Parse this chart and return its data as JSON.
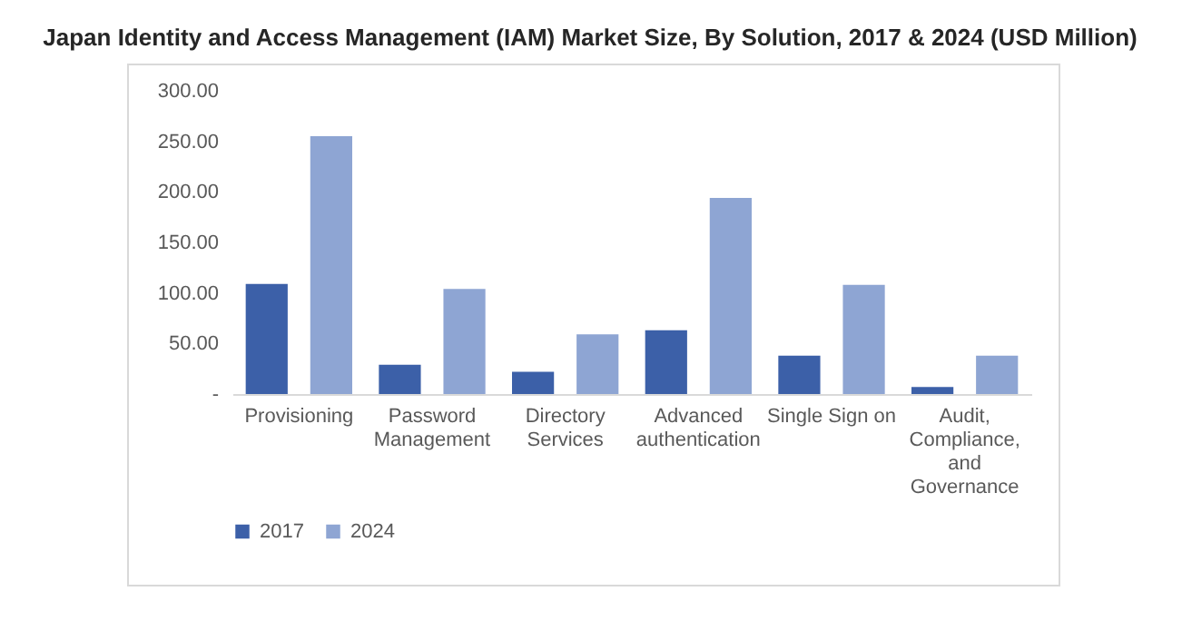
{
  "chart_data": {
    "type": "bar",
    "title": "Japan Identity and Access Management (IAM) Market Size, By Solution, 2017 & 2024 (USD Million)",
    "categories": [
      "Provisioning",
      "Password Management",
      "Directory Services",
      "Advanced authentication",
      "Single Sign on",
      "Audit, Compliance, and Governance"
    ],
    "series": [
      {
        "name": "2017",
        "color": "#3c60a8",
        "values": [
          109,
          29,
          22,
          63,
          38,
          7
        ]
      },
      {
        "name": "2024",
        "color": "#8ea5d3",
        "values": [
          255,
          104,
          59,
          194,
          108,
          38
        ]
      }
    ],
    "ylim": [
      0,
      300
    ],
    "yticks": [
      {
        "value": 0,
        "label": "-"
      },
      {
        "value": 50,
        "label": "50.00"
      },
      {
        "value": 100,
        "label": "100.00"
      },
      {
        "value": 150,
        "label": "150.00"
      },
      {
        "value": 200,
        "label": "200.00"
      },
      {
        "value": 250,
        "label": "250.00"
      },
      {
        "value": 300,
        "label": "300.00"
      }
    ],
    "grid": false,
    "legend": "bottom"
  }
}
